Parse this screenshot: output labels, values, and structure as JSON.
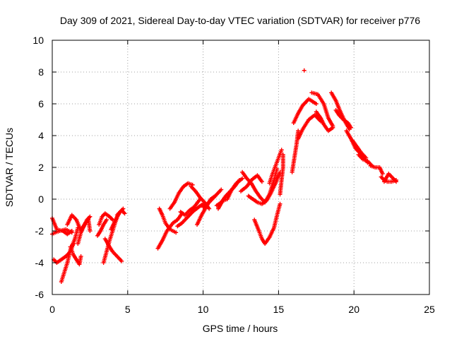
{
  "chart_data": {
    "type": "scatter",
    "title": "Day 309 of 2021, Sidereal Day-to-day VTEC variation (SDTVAR) for receiver p776",
    "xlabel": "GPS time / hours",
    "ylabel": "SDTVAR / TECUs",
    "xlim": [
      0,
      25
    ],
    "ylim": [
      -6,
      10
    ],
    "xticks": [
      0,
      5,
      10,
      15,
      20,
      25
    ],
    "yticks": [
      -6,
      -4,
      -2,
      0,
      2,
      4,
      6,
      8,
      10
    ],
    "xtick_labels": [
      "0",
      "5",
      "10",
      "15",
      "20",
      "25"
    ],
    "ytick_labels": [
      "-6",
      "-4",
      "-2",
      "0",
      "2",
      "4",
      "6",
      "8",
      "10"
    ],
    "grid": true,
    "marker": "plus",
    "marker_color": "#ff0000",
    "series": [
      {
        "name": "SDTVAR",
        "tracks": [
          [
            [
              0.0,
              -1.2
            ],
            [
              0.3,
              -1.9
            ],
            [
              0.7,
              -2.0
            ],
            [
              1.0,
              -2.2
            ],
            [
              1.3,
              -2.0
            ]
          ],
          [
            [
              0.0,
              -2.2
            ],
            [
              0.2,
              -2.1
            ],
            [
              0.5,
              -2.0
            ],
            [
              0.9,
              -1.9
            ],
            [
              1.3,
              -2.1
            ]
          ],
          [
            [
              0.1,
              -3.8
            ],
            [
              0.3,
              -4.0
            ],
            [
              0.6,
              -3.8
            ],
            [
              0.9,
              -3.6
            ],
            [
              1.2,
              -3.3
            ],
            [
              1.4,
              -2.8
            ]
          ],
          [
            [
              0.6,
              -5.2
            ],
            [
              0.8,
              -4.6
            ],
            [
              1.0,
              -4.0
            ],
            [
              1.2,
              -3.2
            ],
            [
              1.5,
              -2.5
            ],
            [
              1.7,
              -1.8
            ]
          ],
          [
            [
              1.2,
              -3.0
            ],
            [
              1.4,
              -3.5
            ],
            [
              1.6,
              -3.8
            ],
            [
              1.8,
              -4.1
            ],
            [
              1.9,
              -3.6
            ]
          ],
          [
            [
              1.0,
              -1.6
            ],
            [
              1.3,
              -1.0
            ],
            [
              1.6,
              -1.3
            ],
            [
              1.9,
              -2.0
            ]
          ],
          [
            [
              1.7,
              -2.8
            ],
            [
              1.9,
              -2.1
            ],
            [
              2.1,
              -1.7
            ],
            [
              2.3,
              -1.3
            ],
            [
              2.5,
              -1.1
            ]
          ],
          [
            [
              2.0,
              -1.8
            ],
            [
              2.2,
              -1.5
            ],
            [
              2.4,
              -1.3
            ],
            [
              2.5,
              -2.0
            ]
          ],
          [
            [
              3.1,
              -1.6
            ],
            [
              3.3,
              -1.1
            ],
            [
              3.5,
              -0.9
            ],
            [
              3.8,
              -1.1
            ],
            [
              4.0,
              -1.3
            ]
          ],
          [
            [
              3.0,
              -2.3
            ],
            [
              3.2,
              -2.0
            ],
            [
              3.4,
              -1.6
            ],
            [
              3.6,
              -1.3
            ]
          ],
          [
            [
              3.4,
              -4.0
            ],
            [
              3.6,
              -3.3
            ],
            [
              3.8,
              -2.6
            ],
            [
              4.0,
              -2.0
            ],
            [
              4.2,
              -1.4
            ],
            [
              4.4,
              -0.9
            ]
          ],
          [
            [
              3.5,
              -2.5
            ],
            [
              3.8,
              -3.0
            ],
            [
              4.0,
              -3.3
            ],
            [
              4.3,
              -3.6
            ],
            [
              4.6,
              -3.9
            ]
          ],
          [
            [
              3.9,
              -1.9
            ],
            [
              4.1,
              -1.5
            ],
            [
              4.3,
              -1.1
            ],
            [
              4.5,
              -0.8
            ],
            [
              4.7,
              -0.6
            ]
          ],
          [
            [
              4.3,
              -1.0
            ],
            [
              4.5,
              -0.8
            ],
            [
              4.6,
              -0.7
            ],
            [
              4.8,
              -0.9
            ]
          ],
          [
            [
              7.0,
              -3.1
            ],
            [
              7.3,
              -2.6
            ],
            [
              7.6,
              -2.0
            ],
            [
              8.0,
              -1.5
            ],
            [
              8.3,
              -1.3
            ],
            [
              8.6,
              -0.9
            ]
          ],
          [
            [
              7.1,
              -0.6
            ],
            [
              7.3,
              -1.0
            ],
            [
              7.5,
              -1.5
            ],
            [
              7.8,
              -1.9
            ],
            [
              8.2,
              -2.1
            ]
          ],
          [
            [
              7.8,
              -0.6
            ],
            [
              8.1,
              -0.2
            ],
            [
              8.4,
              0.4
            ],
            [
              8.7,
              0.8
            ],
            [
              9.0,
              1.0
            ],
            [
              9.3,
              0.9
            ]
          ],
          [
            [
              8.3,
              -1.7
            ],
            [
              8.6,
              -1.5
            ],
            [
              8.9,
              -1.2
            ],
            [
              9.3,
              -0.8
            ],
            [
              9.7,
              -0.5
            ],
            [
              10.0,
              -0.3
            ]
          ],
          [
            [
              8.5,
              -0.8
            ],
            [
              8.8,
              -1.0
            ],
            [
              9.1,
              -0.7
            ],
            [
              9.4,
              -0.5
            ],
            [
              9.8,
              0.0
            ]
          ],
          [
            [
              9.2,
              0.8
            ],
            [
              9.5,
              0.5
            ],
            [
              9.8,
              0.1
            ],
            [
              10.1,
              -0.2
            ],
            [
              10.4,
              -0.6
            ]
          ],
          [
            [
              9.6,
              -1.6
            ],
            [
              9.9,
              -1.0
            ],
            [
              10.2,
              -0.5
            ],
            [
              10.5,
              0.0
            ],
            [
              10.8,
              0.2
            ]
          ],
          [
            [
              10.0,
              -0.5
            ],
            [
              10.3,
              -0.3
            ],
            [
              10.6,
              0.0
            ],
            [
              10.9,
              0.3
            ],
            [
              11.2,
              0.6
            ]
          ],
          [
            [
              10.9,
              -0.4
            ],
            [
              11.2,
              -0.2
            ],
            [
              11.5,
              0.2
            ],
            [
              11.8,
              0.5
            ],
            [
              12.1,
              0.8
            ],
            [
              12.4,
              1.2
            ]
          ],
          [
            [
              11.0,
              -0.6
            ],
            [
              11.3,
              -0.1
            ],
            [
              11.6,
              0.0
            ],
            [
              11.9,
              0.6
            ],
            [
              12.2,
              1.0
            ],
            [
              12.6,
              1.3
            ]
          ],
          [
            [
              12.5,
              0.5
            ],
            [
              12.9,
              0.8
            ],
            [
              13.2,
              1.2
            ],
            [
              13.6,
              1.5
            ],
            [
              13.9,
              1.1
            ]
          ],
          [
            [
              12.6,
              1.7
            ],
            [
              12.9,
              1.3
            ],
            [
              13.2,
              1.0
            ],
            [
              13.5,
              0.5
            ],
            [
              13.8,
              0.1
            ],
            [
              14.1,
              -0.2
            ],
            [
              14.4,
              0.3
            ],
            [
              14.7,
              1.2
            ],
            [
              14.9,
              1.9
            ]
          ],
          [
            [
              13.0,
              0.2
            ],
            [
              13.3,
              0.0
            ],
            [
              13.6,
              -0.2
            ],
            [
              13.9,
              -0.3
            ],
            [
              14.2,
              -0.1
            ],
            [
              14.5,
              0.4
            ],
            [
              14.8,
              1.0
            ],
            [
              15.1,
              1.7
            ]
          ],
          [
            [
              13.4,
              -1.3
            ],
            [
              13.7,
              -2.0
            ],
            [
              13.9,
              -2.5
            ],
            [
              14.1,
              -2.8
            ],
            [
              14.4,
              -2.4
            ],
            [
              14.7,
              -1.8
            ],
            [
              14.9,
              -1.0
            ],
            [
              15.1,
              -0.3
            ]
          ],
          [
            [
              14.4,
              1.0
            ],
            [
              14.6,
              1.6
            ],
            [
              14.8,
              2.1
            ],
            [
              15.0,
              2.6
            ],
            [
              15.2,
              3.1
            ]
          ],
          [
            [
              15.1,
              0.3
            ],
            [
              15.2,
              1.2
            ],
            [
              15.3,
              2.0
            ],
            [
              15.3,
              2.8
            ]
          ],
          [
            [
              15.9,
              1.7
            ],
            [
              16.0,
              2.3
            ],
            [
              16.1,
              2.9
            ],
            [
              16.2,
              3.5
            ],
            [
              16.3,
              4.3
            ]
          ],
          [
            [
              16.0,
              4.8
            ],
            [
              16.3,
              5.4
            ],
            [
              16.6,
              5.9
            ],
            [
              17.0,
              6.3
            ],
            [
              17.5,
              6.0
            ]
          ],
          [
            [
              16.3,
              3.8
            ],
            [
              16.6,
              4.4
            ],
            [
              17.0,
              5.0
            ],
            [
              17.4,
              5.3
            ],
            [
              17.8,
              4.9
            ]
          ],
          [
            [
              16.7,
              8.1
            ]
          ],
          [
            [
              17.2,
              6.7
            ],
            [
              17.6,
              6.6
            ],
            [
              18.0,
              6.0
            ],
            [
              18.3,
              5.1
            ],
            [
              18.6,
              4.6
            ]
          ],
          [
            [
              17.5,
              5.5
            ],
            [
              17.8,
              5.1
            ],
            [
              18.0,
              4.7
            ],
            [
              18.3,
              4.3
            ],
            [
              18.6,
              4.5
            ]
          ],
          [
            [
              18.5,
              6.7
            ],
            [
              18.8,
              6.2
            ],
            [
              19.1,
              5.5
            ],
            [
              19.4,
              4.9
            ],
            [
              19.7,
              4.4
            ]
          ],
          [
            [
              18.8,
              5.6
            ],
            [
              19.0,
              5.3
            ],
            [
              19.3,
              5.0
            ],
            [
              19.6,
              4.8
            ],
            [
              19.8,
              4.5
            ]
          ],
          [
            [
              19.5,
              4.3
            ],
            [
              19.8,
              3.8
            ],
            [
              20.1,
              3.2
            ],
            [
              20.5,
              2.8
            ],
            [
              20.9,
              2.3
            ]
          ],
          [
            [
              19.9,
              3.7
            ],
            [
              20.2,
              3.3
            ],
            [
              20.5,
              2.9
            ],
            [
              20.8,
              2.6
            ]
          ],
          [
            [
              20.3,
              2.8
            ],
            [
              20.6,
              2.5
            ],
            [
              20.9,
              2.4
            ],
            [
              21.2,
              2.1
            ]
          ],
          [
            [
              21.1,
              2.1
            ],
            [
              21.4,
              2.0
            ],
            [
              21.7,
              2.0
            ],
            [
              21.9,
              1.6
            ]
          ],
          [
            [
              21.8,
              1.4
            ],
            [
              22.0,
              1.2
            ],
            [
              22.2,
              1.1
            ],
            [
              22.5,
              1.1
            ],
            [
              22.8,
              1.2
            ]
          ],
          [
            [
              22.0,
              1.1
            ],
            [
              22.3,
              1.6
            ],
            [
              22.6,
              1.3
            ],
            [
              22.8,
              1.1
            ]
          ]
        ]
      }
    ]
  }
}
